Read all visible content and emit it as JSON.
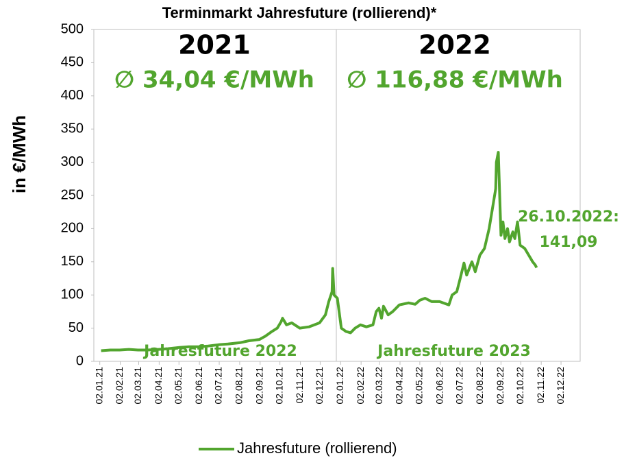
{
  "chart_data": {
    "type": "line",
    "title": "Terminmarkt Jahresfuture (rollierend)*",
    "ylabel": "in €/MWh",
    "annotations": [
      "2021",
      "2022",
      "∅ 34,04 €/MWh",
      "∅ 116,88 €/MWh",
      "26.10.2022:",
      "141,09",
      "Jahresfuture 2022",
      "Jahresfuture 2023"
    ],
    "x": [
      "04.01.21",
      "18.01.21",
      "01.02.21",
      "15.02.21",
      "01.03.21",
      "15.03.21",
      "01.04.21",
      "15.04.21",
      "03.05.21",
      "17.05.21",
      "01.06.21",
      "15.06.21",
      "01.07.21",
      "15.07.21",
      "02.08.21",
      "16.08.21",
      "01.09.21",
      "10.09.21",
      "20.09.21",
      "28.09.21",
      "04.10.21",
      "06.10.21",
      "12.10.21",
      "20.10.21",
      "01.11.21",
      "15.11.21",
      "01.12.21",
      "10.12.21",
      "15.12.21",
      "20.12.21",
      "21.12.21",
      "23.12.21",
      "28.12.21",
      "03.01.22",
      "10.01.22",
      "17.01.22",
      "24.01.22",
      "01.02.22",
      "10.02.22",
      "20.02.22",
      "25.02.22",
      "01.03.22",
      "05.03.22",
      "08.03.22",
      "15.03.22",
      "22.03.22",
      "01.04.22",
      "15.04.22",
      "25.04.22",
      "02.05.22",
      "10.05.22",
      "20.05.22",
      "01.06.22",
      "15.06.22",
      "20.06.22",
      "27.06.22",
      "01.07.22",
      "08.07.22",
      "12.07.22",
      "20.07.22",
      "25.07.22",
      "01.08.22",
      "08.08.22",
      "15.08.22",
      "20.08.22",
      "25.08.22",
      "26.08.22",
      "29.08.22",
      "31.08.22",
      "02.09.22",
      "05.09.22",
      "08.09.22",
      "12.09.22",
      "15.09.22",
      "20.09.22",
      "23.09.22",
      "27.09.22",
      "01.10.22",
      "08.10.22",
      "14.10.22",
      "20.10.22",
      "24.10.22",
      "26.10.22"
    ],
    "series": [
      {
        "name": "Jahresfuture (rollierend)",
        "color": "#52a52e",
        "values": [
          16,
          17,
          17,
          18,
          17,
          17,
          18,
          19,
          21,
          22,
          22,
          23,
          25,
          26,
          28,
          31,
          33,
          38,
          45,
          50,
          60,
          65,
          55,
          58,
          50,
          52,
          58,
          70,
          90,
          105,
          140,
          100,
          95,
          50,
          45,
          43,
          50,
          55,
          52,
          55,
          75,
          80,
          65,
          83,
          70,
          75,
          85,
          88,
          86,
          92,
          95,
          90,
          90,
          85,
          100,
          105,
          120,
          148,
          130,
          150,
          135,
          160,
          170,
          200,
          230,
          260,
          300,
          315,
          250,
          190,
          210,
          185,
          200,
          180,
          195,
          185,
          210,
          175,
          170,
          160,
          150,
          145,
          141.09
        ]
      }
    ],
    "xlim": [
      "24.12.20",
      "31.12.22"
    ],
    "xticks": [
      "02.01.21",
      "02.02.21",
      "02.03.21",
      "02.04.21",
      "02.05.21",
      "02.06.21",
      "02.07.21",
      "02.08.21",
      "02.09.21",
      "02.10.21",
      "02.11.21",
      "02.12.21",
      "02.01.22",
      "02.02.22",
      "02.03.22",
      "02.04.22",
      "02.05.22",
      "02.06.22",
      "02.07.22",
      "02.08.22",
      "02.09.22",
      "02.10.22",
      "02.11.22",
      "02.12.22"
    ],
    "ylim": [
      0,
      500
    ],
    "yticks": [
      0,
      50,
      100,
      150,
      200,
      250,
      300,
      350,
      400,
      450,
      500
    ],
    "legend": "bottom"
  }
}
